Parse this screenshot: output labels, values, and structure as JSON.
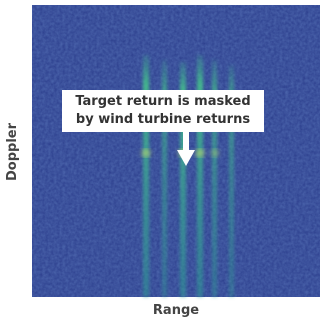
{
  "figure": {
    "x_label": "Range",
    "y_label": "Doppler",
    "annotation": [
      "Target return is masked",
      "by wind turbine returns"
    ]
  }
}
